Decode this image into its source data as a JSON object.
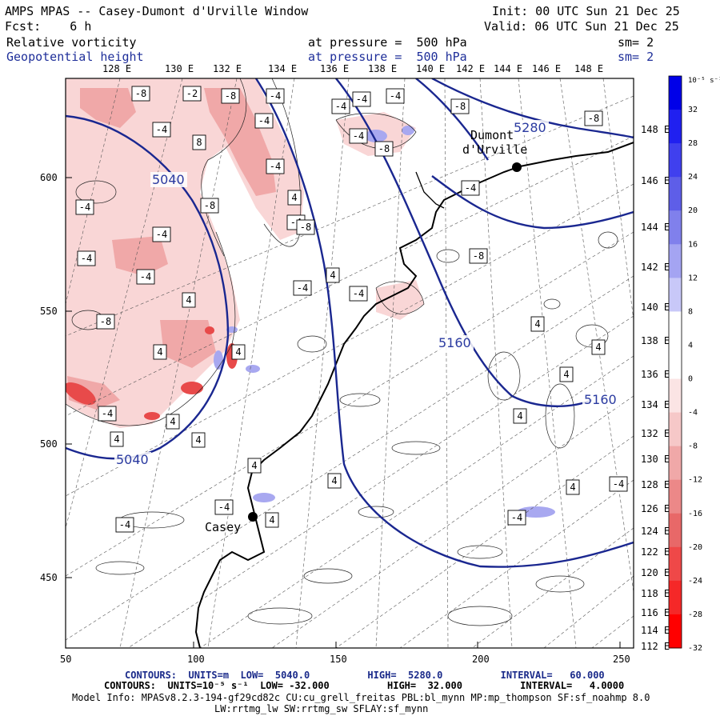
{
  "header": {
    "title": "AMPS MPAS -- Casey-Dumont d'Urville Window",
    "init": "Init: 00 UTC Sun 21 Dec 25",
    "fcst": "Fcst:    6 h",
    "valid": "Valid: 06 UTC Sun 21 Dec 25",
    "field1_name": "Relative vorticity",
    "field1_level": "at pressure =  500 hPa",
    "field1_sm": "sm= 2",
    "field2_name": "Geopotential height",
    "field2_level": "at pressure =  500 hPa",
    "field2_sm": "sm= 2"
  },
  "axes": {
    "top_lon_labels": [
      "128 E",
      "130 E",
      "132 E",
      "134 E",
      "136 E",
      "138 E",
      "140 E",
      "142 E",
      "144 E",
      "146 E",
      "148 E"
    ],
    "right_lon_labels": [
      "148 E",
      "146 E",
      "144 E",
      "142 E",
      "140 E",
      "138 E",
      "136 E",
      "134 E",
      "132 E",
      "130 E",
      "128 E",
      "126 E",
      "124 E",
      "122 E",
      "120 E",
      "118 E",
      "116 E",
      "114 E",
      "112 E"
    ],
    "left_y_labels": [
      "600",
      "550",
      "500",
      "450"
    ],
    "bottom_x_labels": [
      "50",
      "100",
      "150",
      "200",
      "250"
    ]
  },
  "places": {
    "dumont": "Dumont\nd'Urville",
    "casey": "Casey"
  },
  "contour_labels": {
    "height": [
      "5040",
      "5040",
      "5280",
      "5160",
      "5160"
    ],
    "vort_boxes": [
      "-8",
      "-2",
      "-8",
      "-4",
      "-4",
      "-4",
      "-4",
      "-8",
      "-8",
      "-4",
      "-4",
      "8",
      "-4",
      "-8",
      "-4",
      "4",
      "-4",
      "-8",
      "-4",
      "-4",
      "-8",
      "-4",
      "-4",
      "-8",
      "-4",
      "4",
      "-4",
      "-4",
      "4",
      "-8",
      "4",
      "4",
      "4",
      "4",
      "4",
      "4",
      "-4",
      "4",
      "4",
      "4",
      "4",
      "4",
      "4",
      "-4",
      "-4",
      "4",
      "-4",
      "-4"
    ]
  },
  "colorbar": {
    "unit": "10⁻⁵ s⁻¹",
    "labels": [
      "32",
      "28",
      "24",
      "20",
      "16",
      "12",
      "8",
      "4",
      "0",
      "-4",
      "-8",
      "-12",
      "-16",
      "-20",
      "-24",
      "-28",
      "-32"
    ],
    "colors": [
      "#0000e8",
      "#2020f0",
      "#4040ee",
      "#5e5ee8",
      "#8080ec",
      "#a4a4f2",
      "#c8c8f8",
      "#ffffff",
      "#ffffff",
      "#fbe4e4",
      "#f6c8c8",
      "#f0a8a8",
      "#ec8888",
      "#e86868",
      "#ef4848",
      "#f52828",
      "#ff0000"
    ]
  },
  "footer": {
    "line1": "CONTOURS:  UNITS=m  LOW=  5040.0          HIGH=  5280.0          INTERVAL=   60.000",
    "line2": "CONTOURS:  UNITS=10⁻⁵ s⁻¹  LOW= -32.000          HIGH=  32.000          INTERVAL=   4.0000",
    "line3": "Model Info: MPASv8.2.3-194-gf29cd82c CU:cu_grell_freitas PBL:bl_mynn MP:mp_thompson SF:sf_noahmp 8.0",
    "line4": "LW:rrtmg_lw SW:rrtmg_sw SFLAY:sf_mynn"
  }
}
